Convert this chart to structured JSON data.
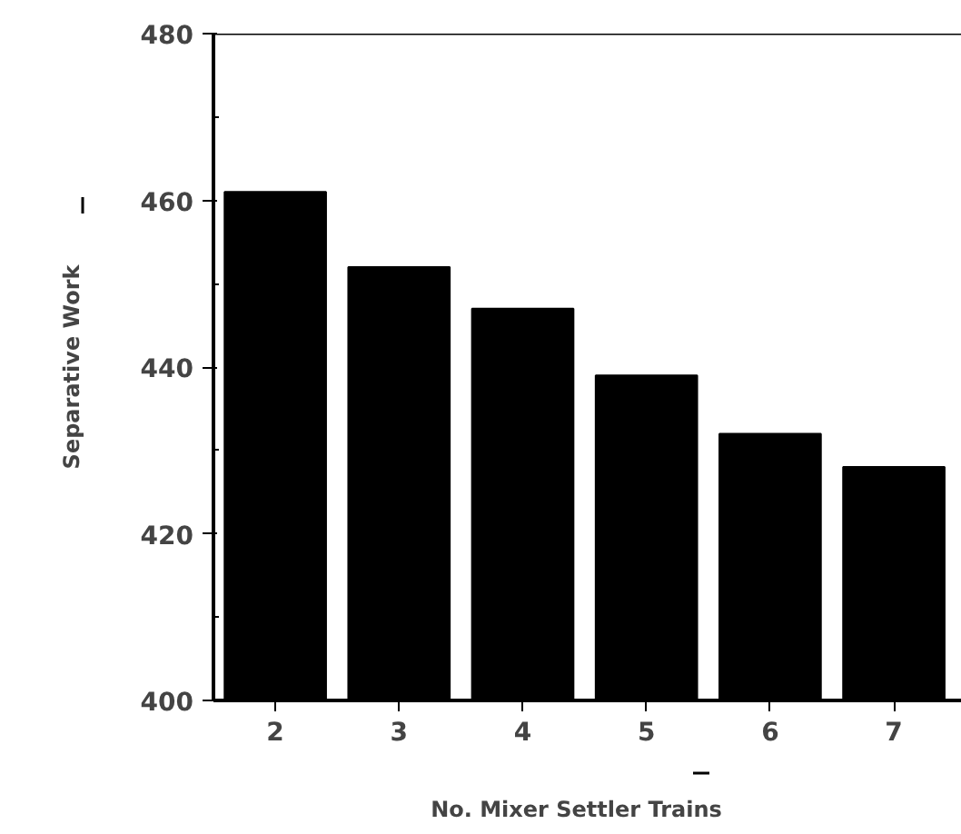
{
  "chart_data": {
    "type": "bar",
    "xlabel": "No.  Mixer  Settler  Trains",
    "ylabel": "Separative Work",
    "categories": [
      "2",
      "3",
      "4",
      "5",
      "6",
      "7"
    ],
    "values": [
      461,
      452,
      447,
      439,
      432,
      428
    ],
    "color": "#000000",
    "ylim": [
      400,
      480
    ],
    "yticks": [
      400,
      420,
      440,
      460,
      480
    ],
    "grid": false
  }
}
